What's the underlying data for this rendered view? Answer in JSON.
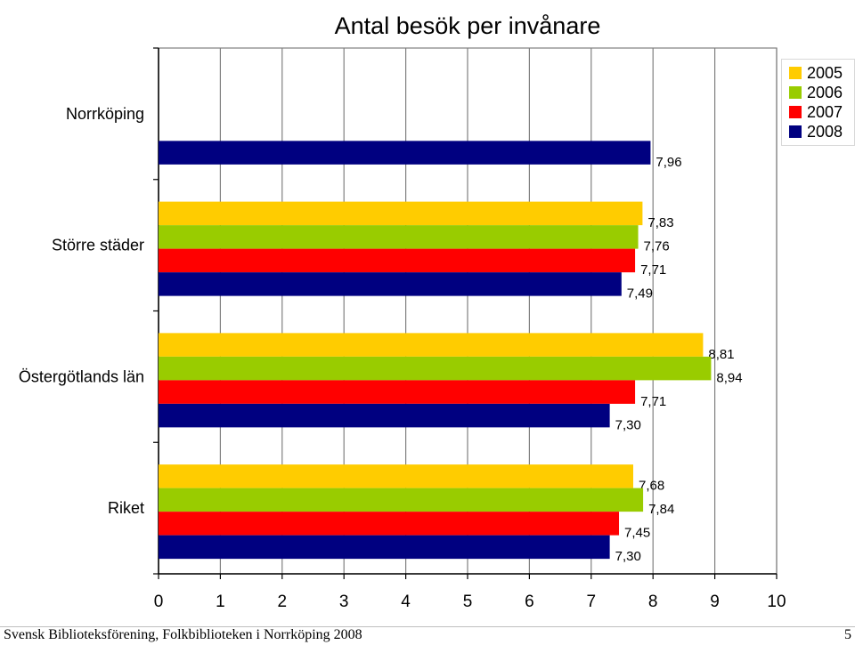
{
  "chart_data": {
    "type": "bar",
    "orientation": "horizontal",
    "title": "Antal besök per invånare",
    "categories": [
      "Norrköping",
      "Större städer",
      "Östergötlands län",
      "Riket"
    ],
    "series": [
      {
        "name": "2005",
        "color": "#FFCC00",
        "values": [
          null,
          7.83,
          8.81,
          7.68
        ],
        "labels": [
          "",
          "7,83",
          "8,81",
          "7,68"
        ]
      },
      {
        "name": "2006",
        "color": "#99CC00",
        "values": [
          null,
          7.76,
          8.94,
          7.84
        ],
        "labels": [
          "",
          "7,76",
          "8,94",
          "7,84"
        ]
      },
      {
        "name": "2007",
        "color": "#FF0000",
        "values": [
          null,
          7.71,
          7.71,
          7.45
        ],
        "labels": [
          "",
          "7,71",
          "7,71",
          "7,45"
        ]
      },
      {
        "name": "2008",
        "color": "#000080",
        "values": [
          7.96,
          7.49,
          7.3,
          7.3
        ],
        "labels": [
          "7,96",
          "7,49",
          "7,30",
          "7,30"
        ]
      }
    ],
    "xlim": [
      0,
      10
    ],
    "xticks": [
      "0",
      "1",
      "2",
      "3",
      "4",
      "5",
      "6",
      "7",
      "8",
      "9",
      "10"
    ],
    "grid": true,
    "legend": "top-right"
  },
  "footer": {
    "left": "Svensk Biblioteksförening, Folkbiblioteken i Norrköping 2008",
    "page": "5"
  }
}
